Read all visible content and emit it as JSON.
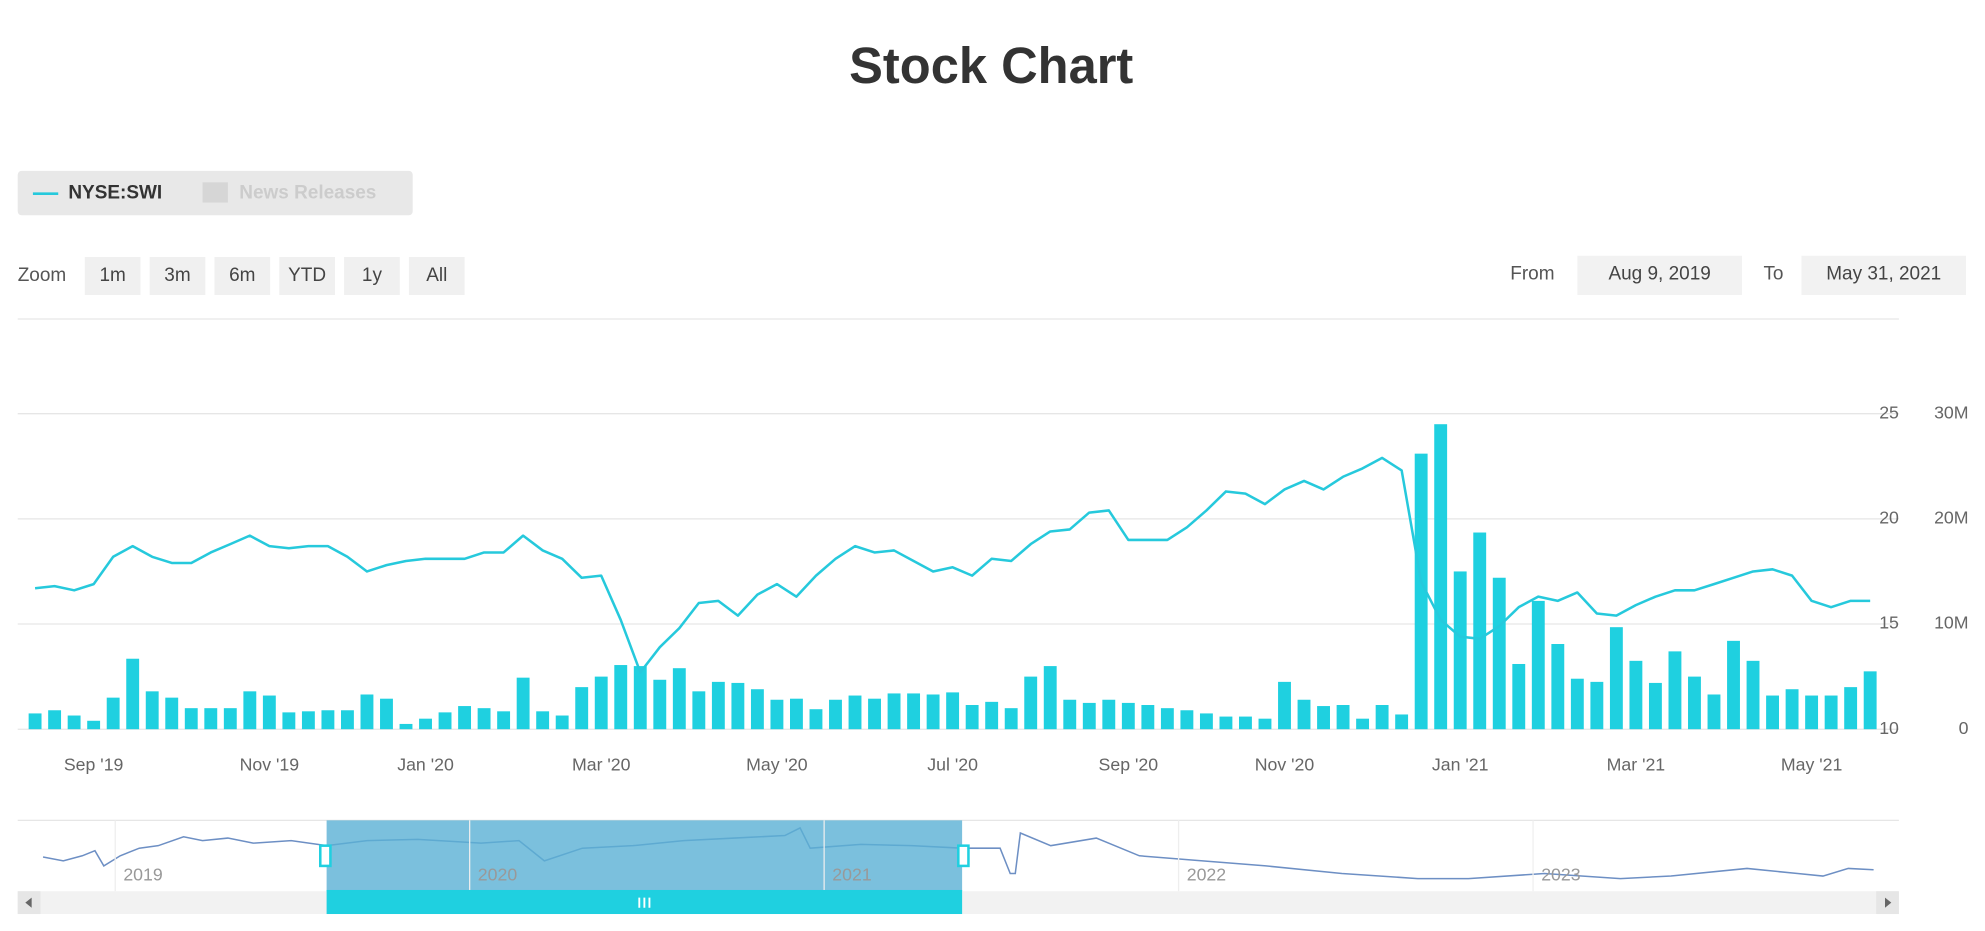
{
  "chart_data": {
    "type": "stock",
    "title": "Stock Chart",
    "categories": [
      null,
      null,
      null,
      "Sep '19",
      null,
      null,
      null,
      null,
      null,
      null,
      null,
      null,
      "Nov '19",
      null,
      null,
      null,
      null,
      null,
      null,
      null,
      "Jan '20",
      null,
      null,
      null,
      null,
      null,
      null,
      null,
      null,
      "Mar '20",
      null,
      null,
      null,
      null,
      null,
      null,
      null,
      null,
      "May '20",
      null,
      null,
      null,
      null,
      null,
      null,
      null,
      null,
      "Jul '20",
      null,
      null,
      null,
      null,
      null,
      null,
      null,
      null,
      "Sep '20",
      null,
      null,
      null,
      null,
      null,
      null,
      null,
      "Nov '20",
      null,
      null,
      null,
      null,
      null,
      null,
      null,
      null,
      "Jan '21",
      null,
      null,
      null,
      null,
      null,
      null,
      null,
      null,
      "Mar '21",
      null,
      null,
      null,
      null,
      null,
      null,
      null,
      null,
      "May '21",
      null,
      null,
      null
    ],
    "series": [
      {
        "name": "NYSE:SWI",
        "type": "line",
        "color": "#26c9dc",
        "axis": "y",
        "values": [
          16.7,
          16.8,
          16.6,
          16.9,
          18.2,
          18.7,
          18.2,
          17.9,
          17.9,
          18.4,
          18.8,
          19.2,
          18.7,
          18.6,
          18.7,
          18.7,
          18.2,
          17.5,
          17.8,
          18.0,
          18.1,
          18.1,
          18.1,
          18.4,
          18.4,
          19.2,
          18.5,
          18.1,
          17.2,
          17.3,
          15.2,
          12.7,
          13.9,
          14.8,
          16.0,
          16.1,
          15.4,
          16.4,
          16.9,
          16.3,
          17.3,
          18.1,
          18.7,
          18.4,
          18.5,
          18.0,
          17.5,
          17.7,
          17.3,
          18.1,
          18.0,
          18.8,
          19.4,
          19.5,
          20.3,
          20.4,
          19.0,
          19.0,
          19.0,
          19.6,
          20.4,
          21.3,
          21.2,
          20.7,
          21.4,
          21.8,
          21.4,
          22.0,
          22.4,
          22.9,
          22.3,
          17.0,
          15.2,
          14.4,
          14.3,
          14.9,
          15.8,
          16.3,
          16.1,
          16.5,
          15.5,
          15.4,
          15.9,
          16.3,
          16.6,
          16.6,
          16.9,
          17.2,
          17.5,
          17.6,
          17.3,
          16.1,
          15.8,
          16.1,
          16.1
        ]
      },
      {
        "type": "bar",
        "color": "#1fd0e0",
        "axis": "y2",
        "values": [
          1500000,
          1800000,
          1300000,
          800000,
          3000000,
          6700000,
          3600000,
          3000000,
          2000000,
          2000000,
          2000000,
          3600000,
          3200000,
          1600000,
          1700000,
          1800000,
          1800000,
          3300000,
          2900000,
          500000,
          1000000,
          1600000,
          2200000,
          2000000,
          1700000,
          4900000,
          1700000,
          1300000,
          4000000,
          5000000,
          6100000,
          6000000,
          4700000,
          5800000,
          3600000,
          4500000,
          4400000,
          3800000,
          2800000,
          2900000,
          1900000,
          2800000,
          3200000,
          2900000,
          3400000,
          3400000,
          3300000,
          3500000,
          2300000,
          2600000,
          2000000,
          5000000,
          6000000,
          2800000,
          2500000,
          2800000,
          2500000,
          2300000,
          2000000,
          1800000,
          1500000,
          1200000,
          1200000,
          1000000,
          4500000,
          2800000,
          2200000,
          2300000,
          1000000,
          2300000,
          1400000,
          26200000,
          29000000,
          15000000,
          18700000,
          14400000,
          6200000,
          12200000,
          8100000,
          4800000,
          4500000,
          9700000,
          6500000,
          4400000,
          7400000,
          5000000,
          3300000,
          8400000,
          6500000,
          3200000,
          3800000,
          3200000,
          3200000,
          4000000,
          5500000
        ]
      }
    ],
    "ylim": [
      10,
      29.5
    ],
    "yticks": [
      10,
      15,
      20,
      25
    ],
    "y2lim": [
      0,
      39000000
    ],
    "y2ticks": [
      0,
      {
        "value": 10000000,
        "label": "10M"
      },
      {
        "value": 20000000,
        "label": "20M"
      },
      {
        "value": 30000000,
        "label": "30M"
      }
    ],
    "grid": true
  },
  "ui": {
    "legend_hidden": "News Releases",
    "zoom_label": "Zoom",
    "zoom_buttons": [
      "1m",
      "3m",
      "6m",
      "YTD",
      "1y",
      "All"
    ],
    "from_label": "From",
    "from_value": "Aug 9, 2019",
    "to_label": "To",
    "to_value": "May 31, 2021",
    "navigator_years": [
      "2019",
      "2020",
      "2021",
      "2022",
      "2023"
    ]
  }
}
